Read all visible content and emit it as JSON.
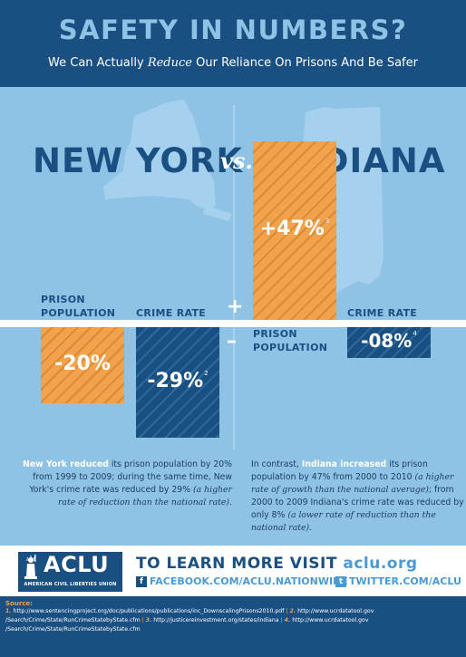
{
  "header": {
    "title": "SAFETY IN NUMBERS?",
    "subtitle_pre": "We Can Actually ",
    "subtitle_em": "Reduce",
    "subtitle_post": " Our Reliance On Prisons And Be Safer"
  },
  "comparison": {
    "left_state": "NEW YORK",
    "vs": "vs.",
    "right_state": "INDIANA",
    "plus": "+",
    "minus": "–"
  },
  "new_york": {
    "prison_label_1": "PRISON",
    "prison_label_2": "POPULATION",
    "prison_value": "-20%",
    "prison_change": -20,
    "crime_label": "CRIME RATE",
    "crime_value": "-29%",
    "crime_change": -29,
    "crime_note": "2"
  },
  "indiana": {
    "prison_label_1": "PRISON",
    "prison_label_2": "POPULATION",
    "prison_value": "+47%",
    "prison_change": 47,
    "prison_note": "3",
    "crime_label": "CRIME RATE",
    "crime_value": "-08%",
    "crime_change": -8,
    "crime_note": "4"
  },
  "text": {
    "ny_hl1": "New York reduced",
    "ny_p1": " its prison population by 20% from 1999 to 2009; during the same time, New York's crime rate was reduced by 29% ",
    "ny_it": "(a higher rate of reduction than the national rate).",
    "in_p0": "In contrast, ",
    "in_hl1": "Indiana increased",
    "in_p1": " its prison population by 47% from 2000 to 2010 ",
    "in_it1": "(a higher rate of growth than the national average)",
    "in_p2": "; from 2000 to 2009 Indiana's crime rate was reduced by only 8% ",
    "in_it2": "(a lower rate of reduction than the national rate)."
  },
  "footer": {
    "logo": "ACLU",
    "logo_sub": "AMERICAN CIVIL LIBERTIES UNION",
    "learn": "TO LEARN MORE VISIT ",
    "learn_url": "aclu.org",
    "facebook_icon": "f",
    "facebook": "FACEBOOK.COM/ACLU.NATIONWIDE",
    "twitter_icon": "t",
    "twitter": "TWITTER.COM/ACLU"
  },
  "sources": {
    "title": "Source:",
    "n1": "1.",
    "s1": "http://www.sentencingproject.org/doc/publications/publications/inc_DownscalingPrisons2010.pdf",
    "n2": "2.",
    "s2": "http://www.ucrdatatool.gov",
    "s2b": "/Search/Crime/State/RunCrimeStatebyState.cfm",
    "n3": "3.",
    "s3": "http://justicereinvestment.org/states/indiana",
    "n4": "4.",
    "s4": "http://www.ucrdatatool.gov",
    "s4b": "/Search/Crime/State/RunCrimeStatebyState.cfm"
  },
  "colors": {
    "navy": "#1a4f82",
    "light_blue": "#8fc3e6",
    "orange": "#f2a24a",
    "accent_blue": "#4a9bd3"
  }
}
